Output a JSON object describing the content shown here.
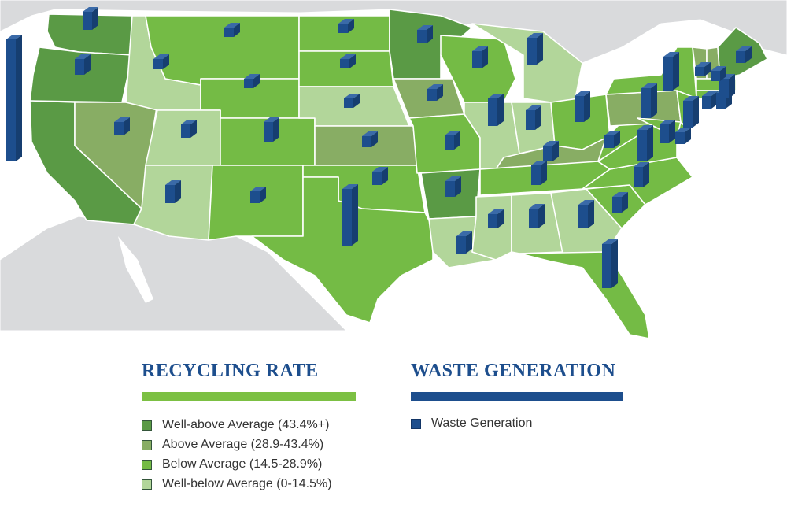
{
  "colors": {
    "well_above": "#5a9a45",
    "above": "#88ad64",
    "below": "#74bb45",
    "well_below": "#b2d69a",
    "waste": "#1d4e8d",
    "heading": "#1d4e8d",
    "rule_green": "#7cc043",
    "rule_blue": "#1d4e8d",
    "land": "#d9dadc",
    "water": "#ffffff"
  },
  "legend": {
    "recycling": {
      "title": "RECYCLING RATE",
      "items": [
        {
          "label": "Well-above Average (43.4%+)",
          "color": "#5a9a45"
        },
        {
          "label": "Above Average (28.9-43.4%)",
          "color": "#88ad64"
        },
        {
          "label": "Below Average (14.5-28.9%)",
          "color": "#74bb45"
        },
        {
          "label": "Well-below Average (0-14.5%)",
          "color": "#b2d69a"
        }
      ]
    },
    "waste": {
      "title": "WASTE GENERATION",
      "item": {
        "label": "Waste Generation",
        "color": "#1d4e8d"
      }
    }
  }
}
